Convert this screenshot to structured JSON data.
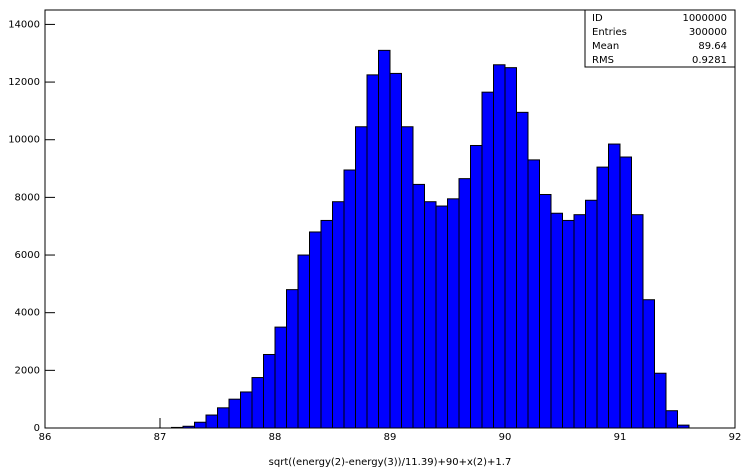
{
  "chart_data": {
    "type": "histogram",
    "xlabel": "sqrt((energy(2)-energy(3))/11.39)+90+x(2)+1.7",
    "bins": [
      87.1,
      87.2,
      87.3,
      87.4,
      87.5,
      87.6,
      87.7,
      87.8,
      87.9,
      88.0,
      88.1,
      88.2,
      88.3,
      88.4,
      88.5,
      88.6,
      88.7,
      88.8,
      88.9,
      89.0,
      89.1,
      89.2,
      89.3,
      89.4,
      89.5,
      89.6,
      89.7,
      89.8,
      89.9,
      90.0,
      90.1,
      90.2,
      90.3,
      90.4,
      90.5,
      90.6,
      90.7,
      90.8,
      90.9,
      91.0,
      91.1,
      91.2,
      91.3,
      91.4,
      91.5,
      91.6
    ],
    "values": [
      20,
      60,
      200,
      450,
      700,
      1000,
      1250,
      1750,
      2550,
      3500,
      4800,
      6000,
      6800,
      7200,
      7850,
      8950,
      10450,
      12250,
      13100,
      12300,
      10450,
      8450,
      7850,
      7700,
      7950,
      8650,
      9800,
      11650,
      12600,
      12500,
      10950,
      9300,
      8100,
      7450,
      7200,
      7400,
      7900,
      9050,
      9850,
      9400,
      7400,
      4450,
      1900,
      600,
      100
    ],
    "color": "#0000ff",
    "xlim": [
      86,
      92
    ],
    "xticks": [
      86,
      87,
      88,
      89,
      90,
      91,
      92
    ],
    "ylim": [
      0,
      14500
    ],
    "yticks": [
      0,
      2000,
      4000,
      6000,
      8000,
      10000,
      12000,
      14000
    ],
    "stats": [
      {
        "label": "ID",
        "value": 1000000
      },
      {
        "label": "Entries",
        "value": 300000
      },
      {
        "label": "Mean",
        "value": 89.64
      },
      {
        "label": "RMS",
        "value": 0.9281
      }
    ]
  }
}
